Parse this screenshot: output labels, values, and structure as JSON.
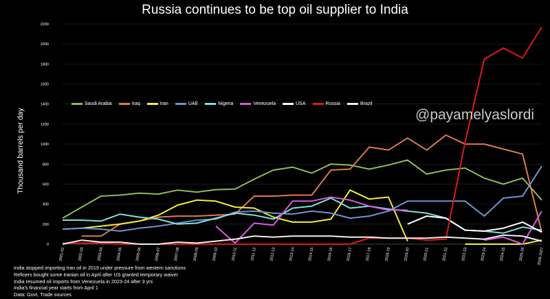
{
  "title": "Russia continues to be top oil supplier to India",
  "watermark": "@payamelyaslordi",
  "notes": [
    "India stopped importing Iran oil in 2019 under pressure from western sanctions",
    "Refiners bought some Iranian oil in April after US granted temporary waiver",
    "India resumed oil imports from Venezuela in 2023-24 after 3 yrs",
    "India's financial year starts from April 1",
    "Data: Govt, Trade sources"
  ],
  "chart_data": {
    "type": "line",
    "ylabel": "Thousand barrels per day",
    "xlabel": "",
    "ylim": [
      0,
      2200
    ],
    "yticks": [
      0,
      200,
      400,
      600,
      800,
      1000,
      1200,
      1400,
      1600,
      1800,
      2000,
      2200
    ],
    "grid": true,
    "legend_position": "top-left",
    "categories": [
      "2001-02",
      "2002-03",
      "2003-04",
      "2004-05",
      "2005-06",
      "2006-07",
      "2007-08",
      "2008-09",
      "2009-10",
      "2010-11",
      "2011-12",
      "2012-13",
      "2013-14",
      "2014-15",
      "2015-16",
      "2016-17",
      "2017-18",
      "2018-19",
      "2019-20",
      "2020-21",
      "2021-22",
      "2022-23",
      "2023-24",
      "2024-25",
      "2025-26",
      "2026-2027"
    ],
    "series": [
      {
        "name": "Saudi Arabia",
        "color": "#8fbc5a",
        "values": [
          260,
          370,
          480,
          490,
          510,
          500,
          540,
          520,
          545,
          550,
          650,
          740,
          770,
          710,
          800,
          790,
          750,
          790,
          840,
          700,
          740,
          760,
          660,
          600,
          660,
          440
        ]
      },
      {
        "name": "Iraq",
        "color": "#e07a4c",
        "values": [
          null,
          80,
          80,
          200,
          230,
          270,
          280,
          280,
          290,
          300,
          480,
          480,
          490,
          490,
          740,
          750,
          970,
          940,
          1060,
          940,
          1090,
          1000,
          1000,
          950,
          900,
          120
        ]
      },
      {
        "name": "Iran",
        "color": "#f2ef3a",
        "values": [
          150,
          160,
          180,
          200,
          230,
          290,
          390,
          440,
          430,
          370,
          360,
          270,
          220,
          220,
          250,
          540,
          450,
          470,
          30,
          null,
          null,
          0,
          0,
          0,
          0,
          40
        ]
      },
      {
        "name": "UAE",
        "color": "#6f94d0",
        "values": [
          150,
          160,
          150,
          130,
          160,
          180,
          210,
          240,
          250,
          320,
          330,
          310,
          300,
          330,
          310,
          260,
          280,
          330,
          430,
          430,
          430,
          430,
          280,
          460,
          480,
          780
        ]
      },
      {
        "name": "Nigeria",
        "color": "#7ee0e0",
        "values": [
          240,
          240,
          230,
          300,
          270,
          250,
          200,
          210,
          260,
          310,
          290,
          250,
          360,
          380,
          460,
          360,
          380,
          350,
          330,
          310,
          260,
          140,
          130,
          110,
          170,
          140
        ]
      },
      {
        "name": "Venezuela",
        "color": "#d95ae0",
        "values": [
          null,
          null,
          null,
          null,
          null,
          null,
          null,
          null,
          180,
          10,
          210,
          190,
          430,
          430,
          470,
          440,
          380,
          340,
          340,
          null,
          null,
          null,
          40,
          70,
          0,
          330
        ]
      },
      {
        "name": "USA",
        "color": "#ffffff",
        "values": [
          null,
          null,
          null,
          null,
          null,
          null,
          null,
          null,
          null,
          null,
          null,
          null,
          null,
          null,
          null,
          null,
          null,
          null,
          200,
          280,
          260,
          140,
          130,
          160,
          220,
          120
        ]
      },
      {
        "name": "Russia",
        "color": "#e01818",
        "values": [
          10,
          10,
          10,
          0,
          0,
          0,
          0,
          0,
          0,
          0,
          0,
          0,
          0,
          0,
          0,
          0,
          60,
          60,
          60,
          40,
          50,
          1020,
          1850,
          1960,
          1860,
          2170
        ]
      },
      {
        "name": "Brazil",
        "color": "#f0f0f0",
        "values": [
          0,
          40,
          20,
          20,
          0,
          0,
          20,
          10,
          30,
          50,
          80,
          70,
          80,
          80,
          80,
          70,
          70,
          60,
          60,
          60,
          70,
          60,
          50,
          90,
          80,
          30
        ]
      }
    ]
  }
}
